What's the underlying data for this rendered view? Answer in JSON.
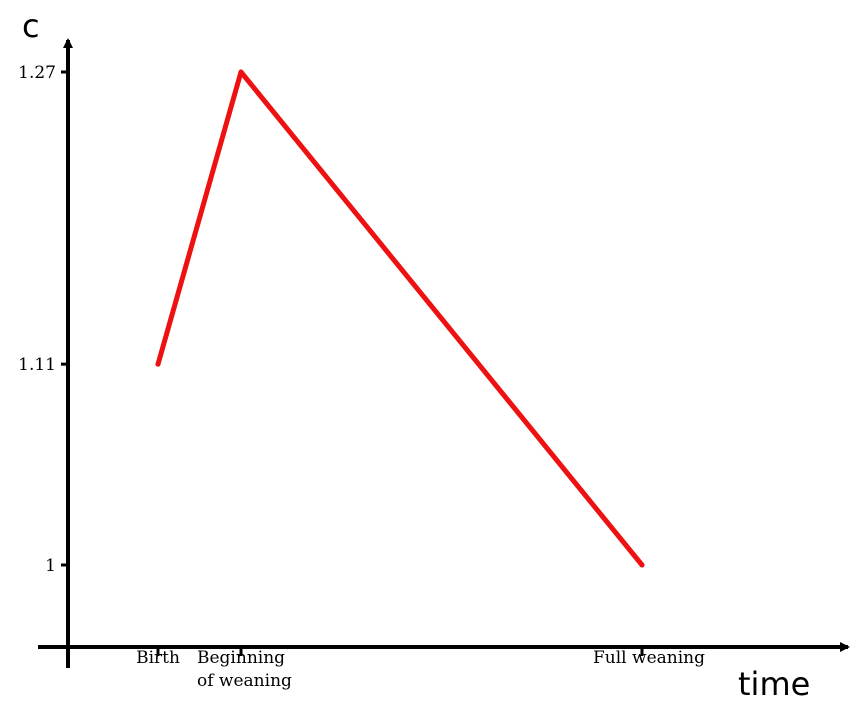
{
  "chart_data": {
    "type": "line",
    "xlabel": "time",
    "ylabel": "c",
    "x_ticks": [
      {
        "lines": [
          "Birth"
        ]
      },
      {
        "lines": [
          "Beginning",
          "of weaning"
        ]
      },
      {
        "lines": [
          "Full weaning"
        ]
      }
    ],
    "y_ticks": [
      "1.27",
      "1.11",
      "1"
    ],
    "y_tick_values": [
      1.27,
      1.11,
      1.0
    ],
    "ylim": [
      0.96,
      1.27
    ],
    "series": [
      {
        "color": "#ee1111",
        "points": [
          {
            "x": "Birth",
            "y": 1.11
          },
          {
            "x": "Beginning of weaning",
            "y": 1.27
          },
          {
            "x": "Full weaning",
            "y": 1.0
          }
        ]
      }
    ]
  }
}
